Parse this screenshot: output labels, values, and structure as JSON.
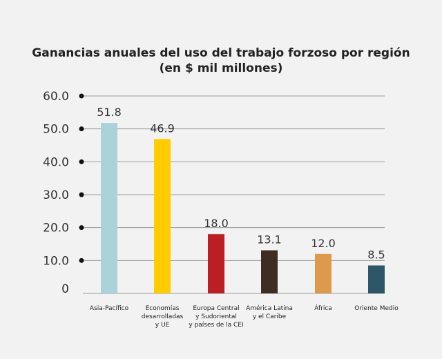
{
  "chart_data": {
    "type": "bar",
    "title_line1": "Ganancias anuales del uso del trabajo forzoso por región",
    "title_line2": "(en $ mil millones)",
    "categories": [
      [
        "Asia-Pacífico"
      ],
      [
        "Economías",
        "desarrolladas",
        "y UE"
      ],
      [
        "Europa Central",
        "y Sudoriental",
        "y países de la CEI"
      ],
      [
        "América Latina",
        "y el Caribe"
      ],
      [
        "África"
      ],
      [
        "Oriente Medio"
      ]
    ],
    "values": [
      51.8,
      46.9,
      18.0,
      13.1,
      12.0,
      8.5
    ],
    "data_labels": [
      "51.8",
      "46.9",
      "18.0",
      "13.1",
      "12.0",
      "8.5"
    ],
    "colors": [
      "#a9d3d8",
      "#ffcc00",
      "#bb1e23",
      "#3e2d22",
      "#dd9a4c",
      "#2d5668"
    ],
    "ylim": [
      0,
      60
    ],
    "yticks": [
      "0",
      "10.0",
      "20.0",
      "30.0",
      "40.0",
      "50.0",
      "60.0"
    ],
    "grid": true,
    "xlabel": "",
    "ylabel": ""
  }
}
